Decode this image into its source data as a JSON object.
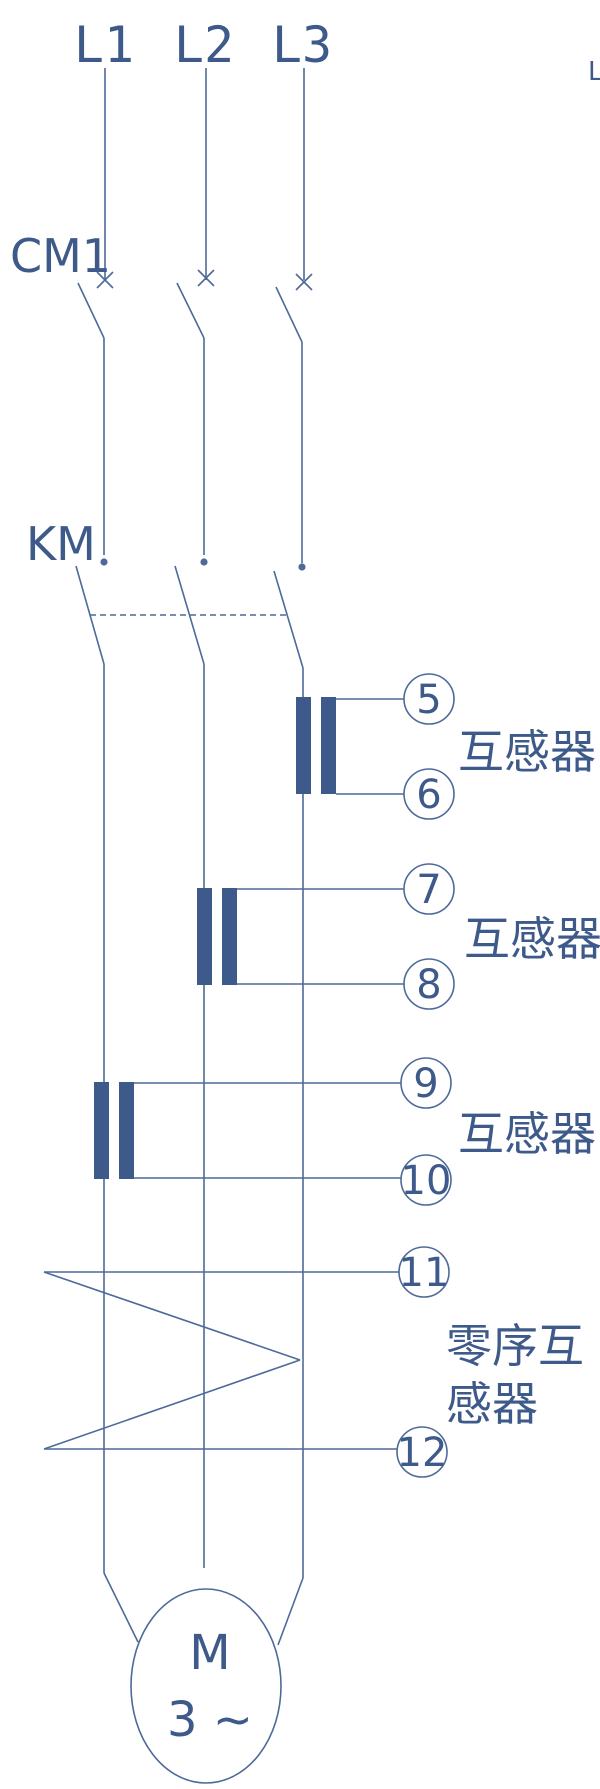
{
  "phases": [
    "L1",
    "L2",
    "L3"
  ],
  "corner_mark": "L",
  "breaker_label": "CM1",
  "contactor_label": "KM",
  "transformers": [
    {
      "label": "互感器",
      "terminals": [
        "5",
        "6"
      ]
    },
    {
      "label": "互感器",
      "terminals": [
        "7",
        "8"
      ]
    },
    {
      "label": "互感器",
      "terminals": [
        "9",
        "10"
      ]
    }
  ],
  "zero_sequence": {
    "label_line1": "零序互",
    "label_line2": "感器",
    "terminals": [
      "11",
      "12"
    ]
  },
  "motor": {
    "symbol": "M",
    "phase_text": "3 ~"
  },
  "colors": {
    "line": "#4d6a99",
    "text": "#3d5a8a"
  }
}
